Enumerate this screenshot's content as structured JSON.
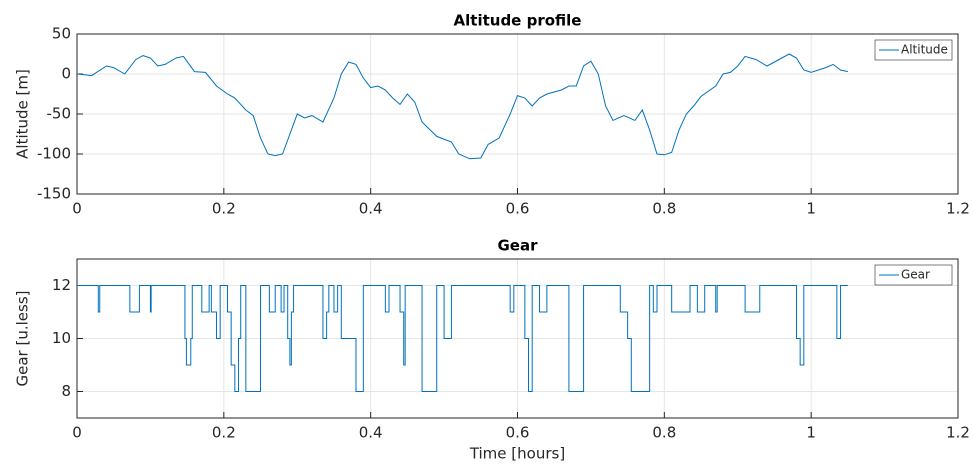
{
  "chart_data": [
    {
      "type": "line",
      "title": "Altitude profile",
      "ylabel": "Altitude [m]",
      "xlim": [
        0,
        1.2
      ],
      "xticks": [
        0,
        0.2,
        0.4,
        0.6,
        0.8,
        1,
        1.2
      ],
      "ylim": [
        -150,
        50
      ],
      "yticks": [
        -150,
        -100,
        -50,
        0,
        50
      ],
      "grid": true,
      "legend": "upper right",
      "x": [
        0,
        0.01,
        0.02,
        0.04,
        0.05,
        0.065,
        0.08,
        0.09,
        0.1,
        0.11,
        0.12,
        0.135,
        0.145,
        0.16,
        0.175,
        0.19,
        0.205,
        0.215,
        0.23,
        0.24,
        0.25,
        0.26,
        0.27,
        0.28,
        0.29,
        0.3,
        0.31,
        0.32,
        0.335,
        0.35,
        0.36,
        0.37,
        0.38,
        0.39,
        0.4,
        0.41,
        0.42,
        0.43,
        0.44,
        0.45,
        0.46,
        0.47,
        0.49,
        0.51,
        0.52,
        0.535,
        0.55,
        0.56,
        0.575,
        0.59,
        0.6,
        0.61,
        0.62,
        0.63,
        0.64,
        0.66,
        0.67,
        0.68,
        0.69,
        0.7,
        0.71,
        0.72,
        0.73,
        0.745,
        0.76,
        0.77,
        0.78,
        0.79,
        0.8,
        0.81,
        0.82,
        0.83,
        0.84,
        0.85,
        0.87,
        0.88,
        0.89,
        0.9,
        0.91,
        0.925,
        0.94,
        0.95,
        0.97,
        0.98,
        0.99,
        1.0,
        1.02,
        1.03,
        1.04,
        1.05
      ],
      "series": [
        {
          "name": "Altitude",
          "color": "#0072bd",
          "values": [
            0,
            -1,
            -2,
            10,
            8,
            0,
            18,
            23,
            20,
            10,
            12,
            20,
            22,
            3,
            2,
            -15,
            -25,
            -30,
            -45,
            -52,
            -80,
            -100,
            -102,
            -100,
            -75,
            -50,
            -55,
            -52,
            -60,
            -30,
            0,
            15,
            12,
            -5,
            -17,
            -15,
            -20,
            -30,
            -38,
            -25,
            -35,
            -60,
            -78,
            -85,
            -100,
            -106,
            -105,
            -88,
            -80,
            -50,
            -27,
            -30,
            -40,
            -30,
            -25,
            -20,
            -15,
            -15,
            10,
            16,
            0,
            -40,
            -58,
            -52,
            -58,
            -45,
            -70,
            -100,
            -101,
            -98,
            -70,
            -50,
            -40,
            -28,
            -15,
            0,
            2,
            10,
            22,
            18,
            10,
            15,
            25,
            20,
            5,
            2,
            8,
            12,
            5,
            3
          ]
        }
      ]
    },
    {
      "type": "line",
      "drawstyle": "steps-post",
      "title": "Gear",
      "ylabel": "Gear [u.less]",
      "xlabel": "Time [hours]",
      "xlim": [
        0,
        1.2
      ],
      "xticks": [
        0,
        0.2,
        0.4,
        0.6,
        0.8,
        1,
        1.2
      ],
      "ylim": [
        7,
        13
      ],
      "yticks": [
        8,
        10,
        12
      ],
      "grid": true,
      "legend": "upper right",
      "x": [
        0,
        0.029,
        0.031,
        0.072,
        0.085,
        0.1,
        0.101,
        0.147,
        0.149,
        0.155,
        0.157,
        0.17,
        0.18,
        0.183,
        0.19,
        0.195,
        0.205,
        0.21,
        0.215,
        0.22,
        0.223,
        0.23,
        0.25,
        0.262,
        0.27,
        0.278,
        0.282,
        0.287,
        0.29,
        0.292,
        0.295,
        0.335,
        0.34,
        0.343,
        0.35,
        0.355,
        0.36,
        0.38,
        0.39,
        0.42,
        0.425,
        0.44,
        0.445,
        0.447,
        0.47,
        0.49,
        0.5,
        0.51,
        0.59,
        0.595,
        0.61,
        0.615,
        0.62,
        0.63,
        0.64,
        0.67,
        0.69,
        0.74,
        0.75,
        0.755,
        0.78,
        0.785,
        0.79,
        0.81,
        0.835,
        0.845,
        0.855,
        0.87,
        0.872,
        0.91,
        0.93,
        0.98,
        0.985,
        0.99,
        1.035,
        1.04,
        1.05
      ],
      "series": [
        {
          "name": "Gear",
          "color": "#0072bd",
          "values": [
            12,
            11,
            12,
            11,
            12,
            11,
            12,
            10,
            9,
            10,
            12,
            11,
            12,
            11,
            10,
            12,
            11,
            9,
            8,
            10,
            12,
            8,
            12,
            11,
            12,
            11,
            12,
            10,
            9,
            11,
            12,
            10,
            11,
            12,
            11,
            12,
            10,
            8,
            12,
            11,
            12,
            11,
            9,
            12,
            8,
            12,
            10,
            12,
            11,
            12,
            10,
            8,
            12,
            11,
            12,
            8,
            12,
            11,
            10,
            8,
            12,
            11,
            12,
            11,
            12,
            11,
            12,
            11,
            12,
            11,
            12,
            10,
            9,
            12,
            10,
            12,
            12
          ]
        }
      ]
    }
  ]
}
